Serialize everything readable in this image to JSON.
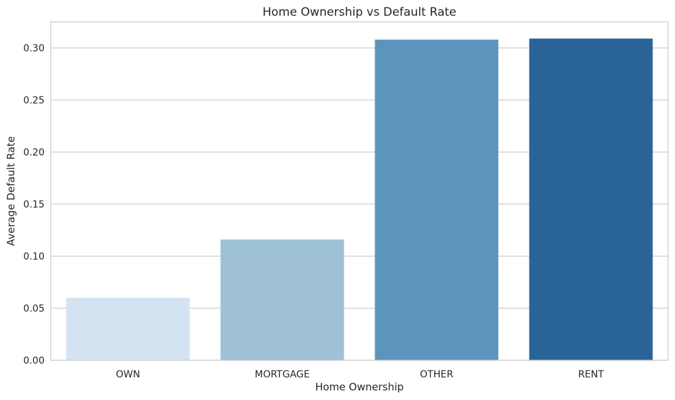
{
  "chart_data": {
    "type": "bar",
    "title": "Home Ownership vs Default Rate",
    "xlabel": "Home Ownership",
    "ylabel": "Average Default Rate",
    "categories": [
      "OWN",
      "MORTGAGE",
      "OTHER",
      "RENT"
    ],
    "values": [
      0.06,
      0.116,
      0.308,
      0.309
    ],
    "colors": [
      "#d4e3f1",
      "#9ec1d6",
      "#5b95bb",
      "#2a6398"
    ],
    "ylim": [
      0,
      0.325
    ],
    "yticks": [
      "0.00",
      "0.05",
      "0.10",
      "0.15",
      "0.20",
      "0.25",
      "0.30"
    ],
    "grid": "horizontal",
    "legend": "none"
  }
}
